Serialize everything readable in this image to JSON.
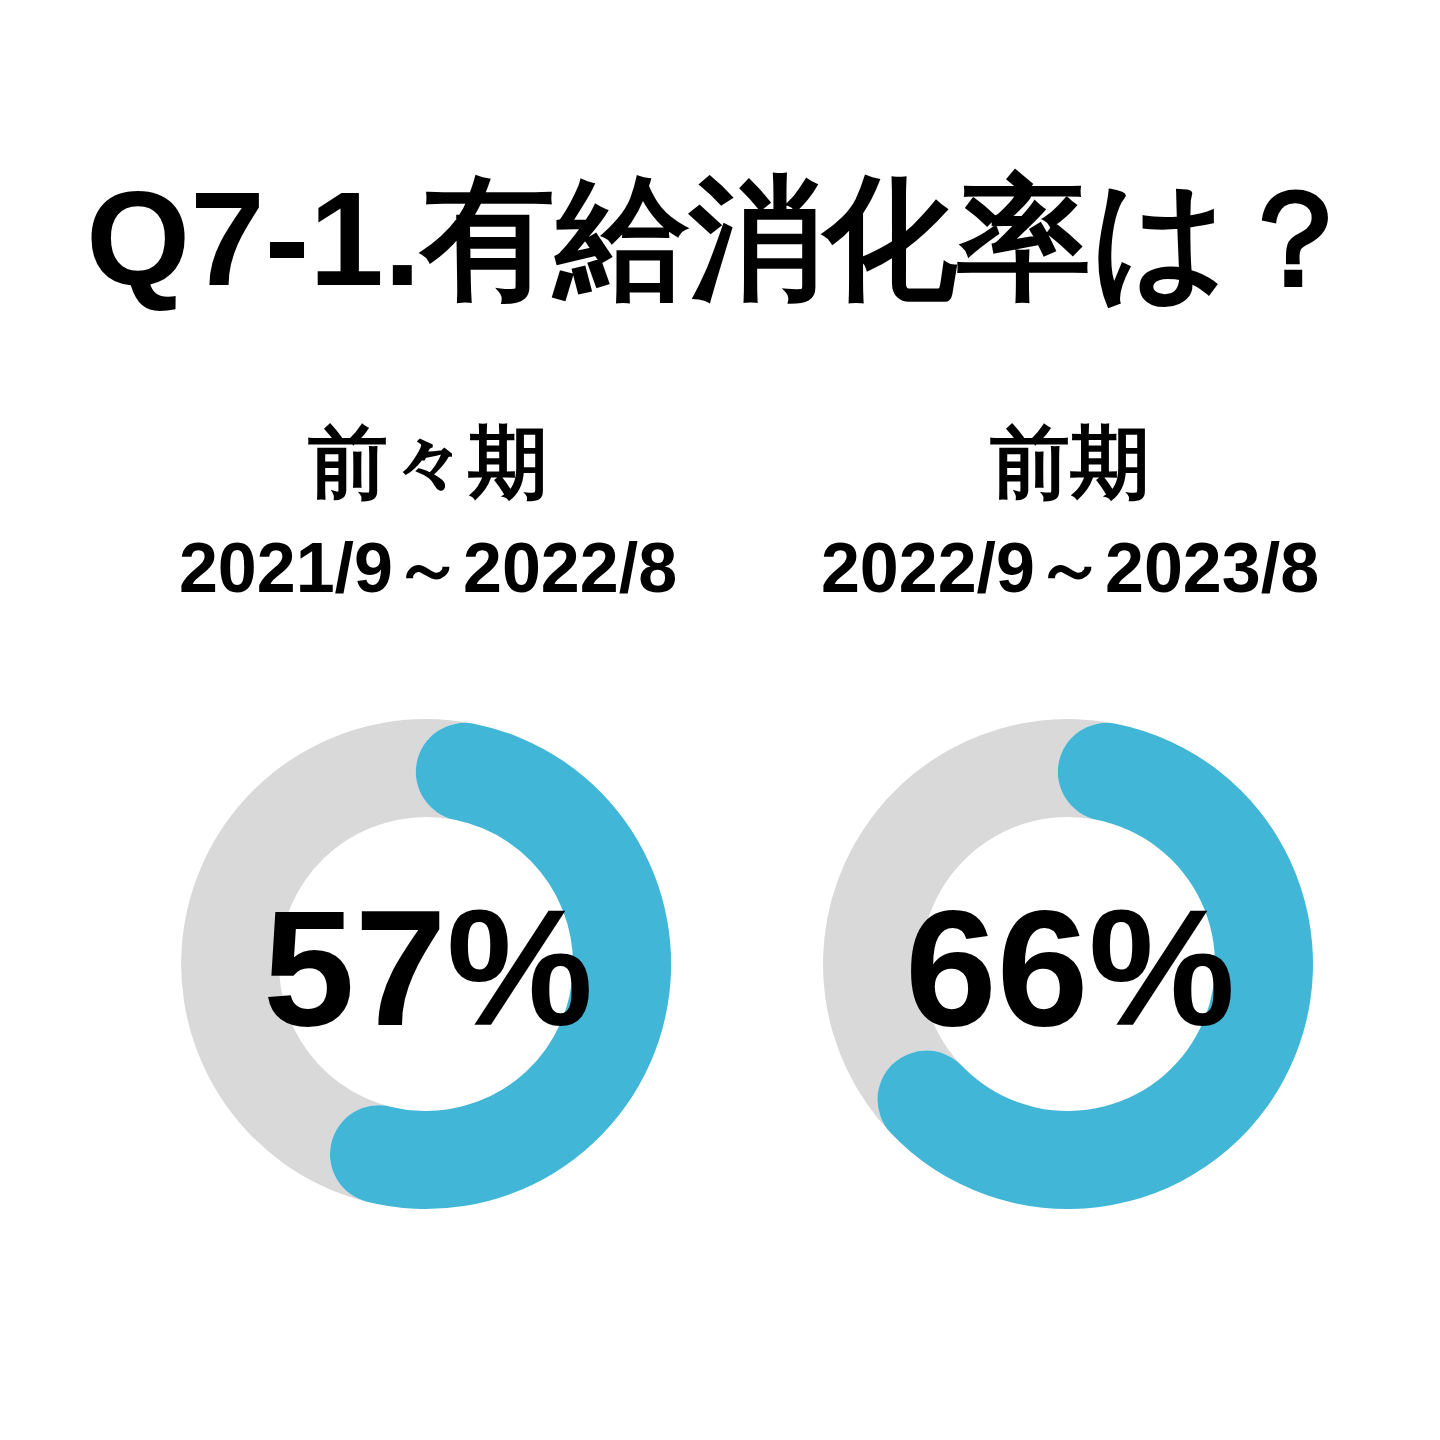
{
  "chart_data": [
    {
      "type": "other",
      "title": "Q7-1.有給消化率は？"
    },
    {
      "type": "donut",
      "title": "前々期",
      "subtitle": "2021/9～2022/8",
      "categories": [
        null,
        null
      ],
      "values": [
        57,
        43
      ],
      "colors": [
        "#42b6d6",
        "#d9d9d9"
      ],
      "value_labels": [
        "57%",
        null
      ]
    },
    {
      "type": "donut",
      "title": "前期",
      "subtitle": "2022/9～2023/8",
      "categories": [
        null,
        null
      ],
      "values": [
        66,
        34
      ],
      "colors": [
        "#42b6d6",
        "#d9d9d9"
      ],
      "value_labels": [
        "66%",
        null
      ]
    }
  ]
}
